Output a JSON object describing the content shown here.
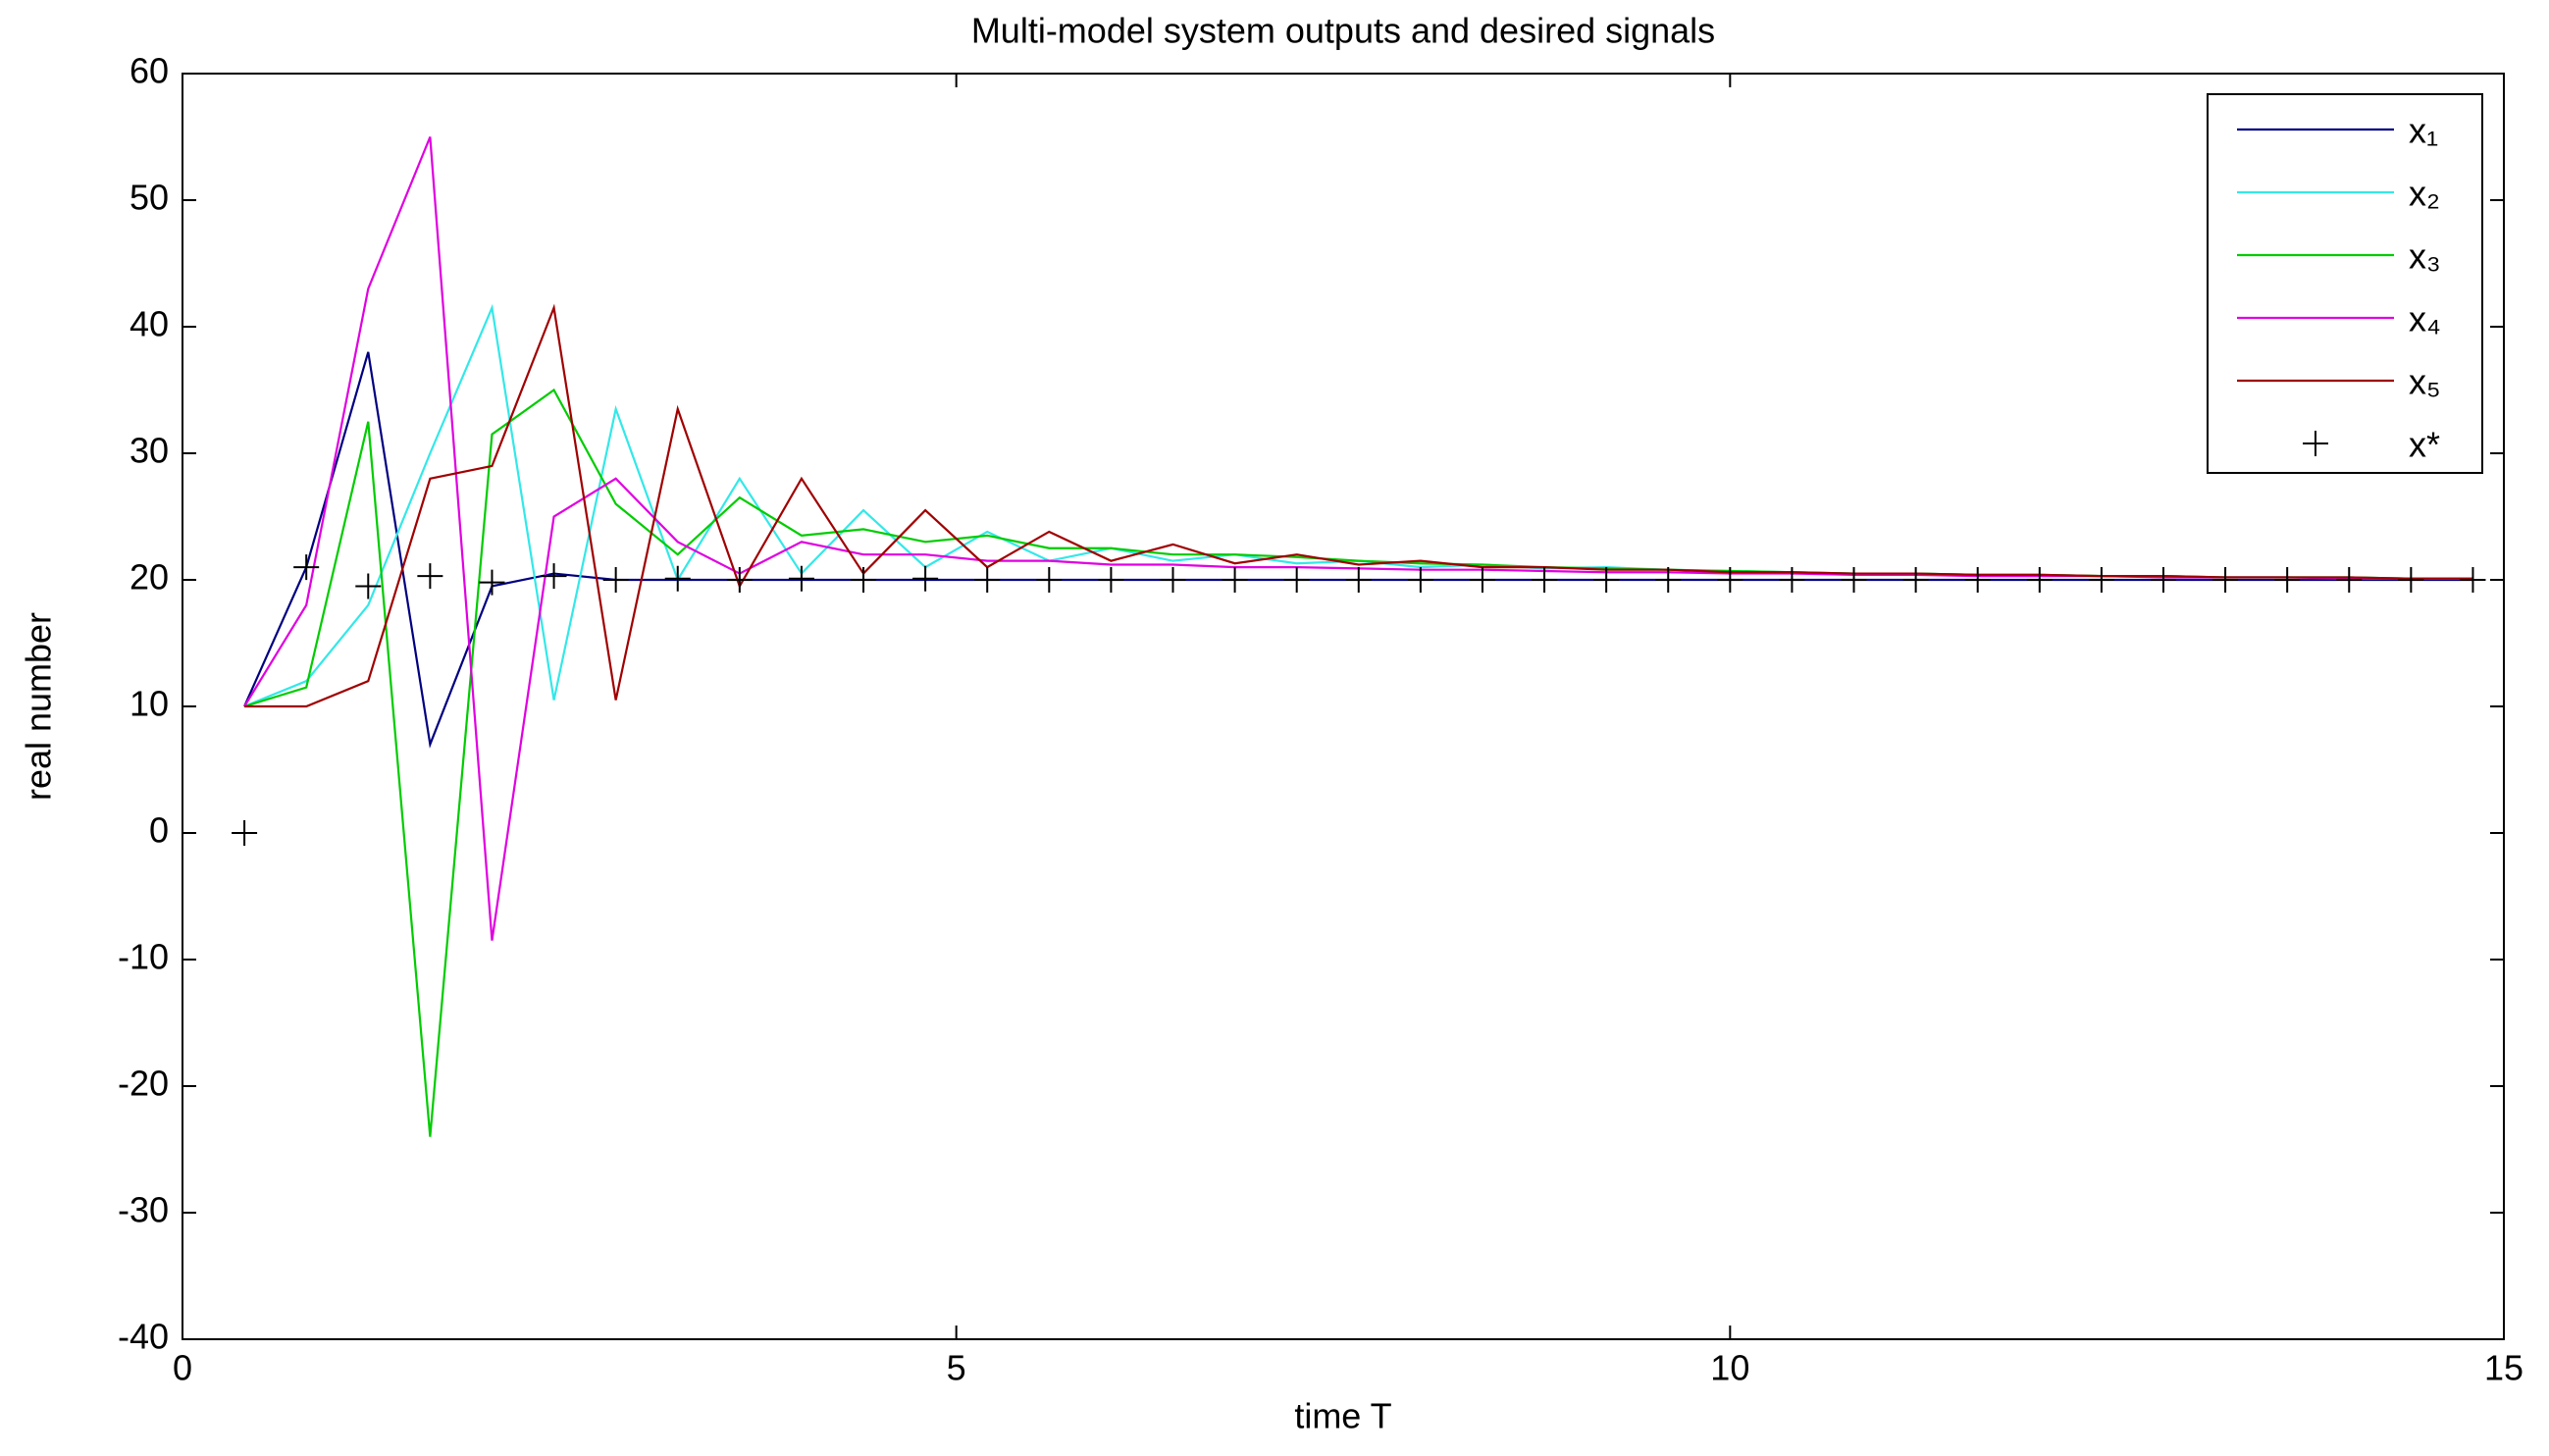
{
  "chart_data": {
    "type": "line",
    "title": "Multi-model system outputs and desired signals",
    "x_label": "time T",
    "y_label": "real number",
    "x": [
      0.4,
      0.8,
      1.2,
      1.6,
      2,
      2.4,
      2.8,
      3.2,
      3.6,
      4,
      4.4,
      4.8,
      5.2,
      5.6,
      6,
      6.4,
      6.8,
      7.2,
      7.6,
      8,
      8.4,
      8.8,
      9.2,
      9.6,
      10,
      10.4,
      10.8,
      11.2,
      11.6,
      12,
      12.4,
      12.8,
      13.2,
      13.6,
      14,
      14.4,
      14.8
    ],
    "xlim": [
      0,
      15
    ],
    "xticks": [
      0,
      5,
      10,
      15
    ],
    "ylim": [
      -40,
      60
    ],
    "yticks": [
      -40,
      -30,
      -20,
      -10,
      0,
      10,
      20,
      30,
      40,
      50,
      60
    ],
    "legend": "top-right",
    "series": [
      {
        "name": "x₁",
        "color": "#000080",
        "values": [
          10,
          21,
          38,
          7,
          19.5,
          20.5,
          20,
          20,
          20,
          20,
          20,
          20,
          20,
          20,
          20,
          20,
          20,
          20,
          20,
          20,
          20,
          20,
          20,
          20,
          20,
          20,
          20,
          20,
          20,
          20,
          20,
          20,
          20,
          20,
          20,
          20,
          20
        ]
      },
      {
        "name": "x₂",
        "color": "#33e8e8",
        "values": [
          10,
          12,
          18,
          30,
          41.5,
          10.5,
          33.5,
          20,
          28,
          20.5,
          25.5,
          21,
          23.8,
          21.5,
          22.5,
          21.5,
          22,
          21.3,
          21.5,
          21,
          21.2,
          20.9,
          21,
          20.8,
          20.7,
          20.6,
          20.5,
          20.5,
          20.4,
          20.4,
          20.3,
          20.3,
          20.2,
          20.2,
          20.2,
          20.1,
          20.1
        ]
      },
      {
        "name": "x₃",
        "color": "#00cc00",
        "values": [
          10,
          11.5,
          32.5,
          -24,
          31.5,
          35,
          26,
          22,
          26.5,
          23.5,
          24,
          23,
          23.5,
          22.5,
          22.5,
          22,
          22,
          21.8,
          21.5,
          21.3,
          21.2,
          21,
          20.9,
          20.8,
          20.7,
          20.6,
          20.5,
          20.5,
          20.4,
          20.4,
          20.3,
          20.3,
          20.2,
          20.2,
          20.2,
          20.1,
          20.1
        ]
      },
      {
        "name": "x₄",
        "color": "#e000e0",
        "values": [
          10,
          18,
          43,
          55,
          -8.5,
          25,
          28,
          23,
          20.5,
          23,
          22,
          22,
          21.5,
          21.5,
          21.2,
          21.2,
          21,
          21,
          20.9,
          20.8,
          20.8,
          20.7,
          20.6,
          20.6,
          20.5,
          20.5,
          20.4,
          20.4,
          20.3,
          20.3,
          20.3,
          20.2,
          20.2,
          20.2,
          20.1,
          20.1,
          20.1
        ]
      },
      {
        "name": "x₅",
        "color": "#a00000",
        "values": [
          10,
          10,
          12,
          28,
          29,
          41.5,
          10.5,
          33.5,
          19.5,
          28,
          20.5,
          25.5,
          21,
          23.8,
          21.5,
          22.8,
          21.3,
          22,
          21.2,
          21.5,
          21,
          21,
          20.8,
          20.8,
          20.6,
          20.6,
          20.5,
          20.5,
          20.4,
          20.4,
          20.3,
          20.3,
          20.2,
          20.2,
          20.2,
          20.1,
          20.1
        ]
      },
      {
        "name": "x*",
        "color": "#000000",
        "marker": "+",
        "values": [
          0,
          21,
          19.5,
          20.3,
          19.8,
          20.3,
          20,
          20.1,
          20,
          20.1,
          20,
          20.1,
          20,
          20,
          20,
          20,
          20,
          20,
          20,
          20,
          20,
          20,
          20,
          20,
          20,
          20,
          20,
          20,
          20,
          20,
          20,
          20,
          20,
          20,
          20,
          20,
          20
        ]
      }
    ]
  }
}
